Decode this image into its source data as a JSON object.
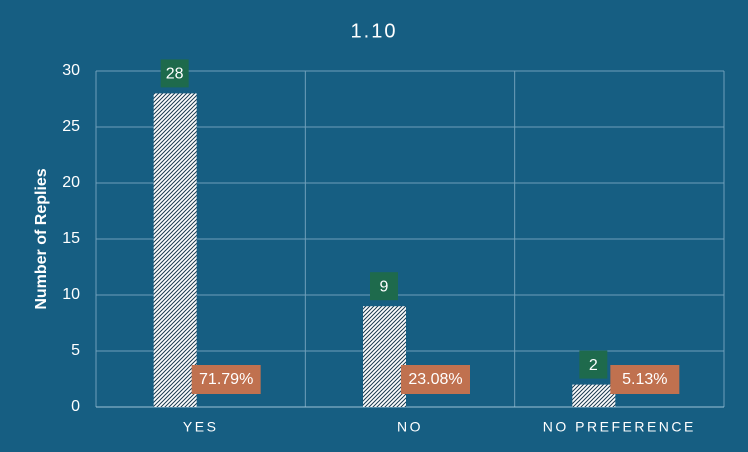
{
  "chart_data": {
    "type": "bar",
    "title": "1.10",
    "ylabel": "Number of Replies",
    "categories": [
      "YES",
      "NO",
      "NO PREFERENCE"
    ],
    "values": [
      28,
      9,
      2
    ],
    "shares": [
      "71.79%",
      "23.08%",
      "5.13%"
    ],
    "color": "#ffffff",
    "count_label_color": "#1e6a4c",
    "share_label_color": "#c0714f",
    "ylim": [
      0,
      30
    ],
    "yticks": [
      0,
      5,
      10,
      15,
      20,
      25,
      30
    ],
    "grid": true
  }
}
